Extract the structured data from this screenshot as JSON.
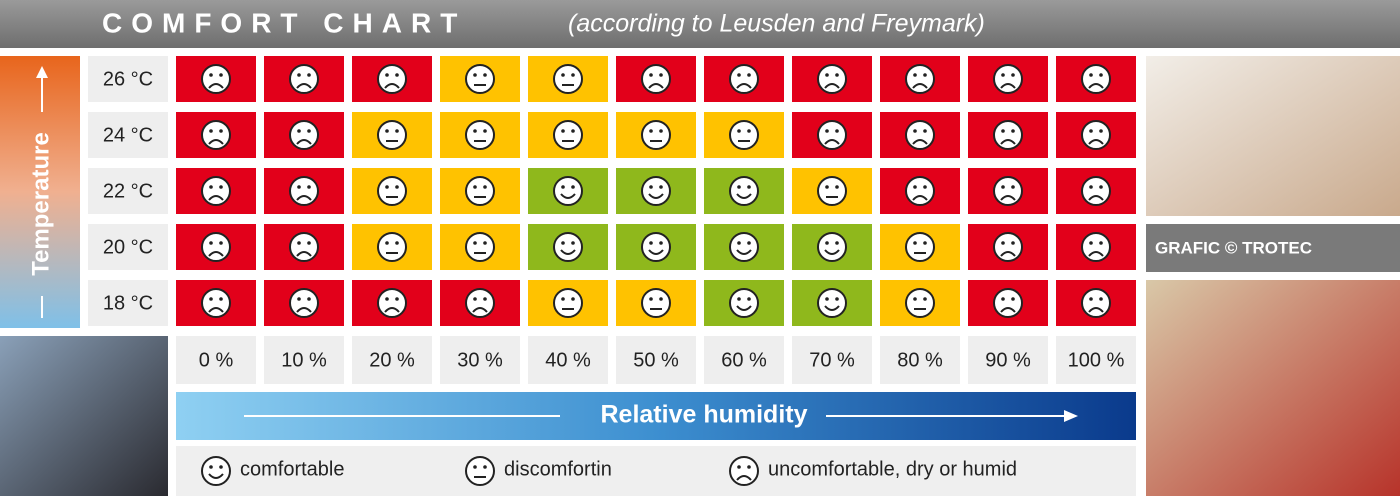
{
  "header": {
    "title": "COMFORT CHART",
    "subtitle": "(according to Leusden and Freymark)"
  },
  "axis_y_label": "Temperature",
  "axis_x_label": "Relative humidity",
  "rows": [
    "26 °C",
    "24 °C",
    "22 °C",
    "20 °C",
    "18 °C"
  ],
  "columns": [
    "0 %",
    "10 %",
    "20 %",
    "30 %",
    "40 %",
    "50 %",
    "60 %",
    "70 %",
    "80 %",
    "90 %",
    "100 %"
  ],
  "legend": [
    {
      "label": "comfortable",
      "color": "#8fb81c"
    },
    {
      "label": "discomfortin",
      "color": "#ffc200"
    },
    {
      "label": "uncomfortable, dry or humid",
      "color": "#e2001a"
    }
  ],
  "cells": [
    [
      2,
      2,
      2,
      1,
      1,
      2,
      2,
      2,
      2,
      2,
      2
    ],
    [
      2,
      2,
      1,
      1,
      1,
      1,
      1,
      2,
      2,
      2,
      2
    ],
    [
      2,
      2,
      1,
      1,
      0,
      0,
      0,
      1,
      2,
      2,
      2
    ],
    [
      2,
      2,
      1,
      1,
      0,
      0,
      0,
      0,
      1,
      2,
      2
    ],
    [
      2,
      2,
      2,
      2,
      1,
      1,
      0,
      0,
      1,
      2,
      2
    ]
  ],
  "credit": "GRAFIC © TROTEC"
}
